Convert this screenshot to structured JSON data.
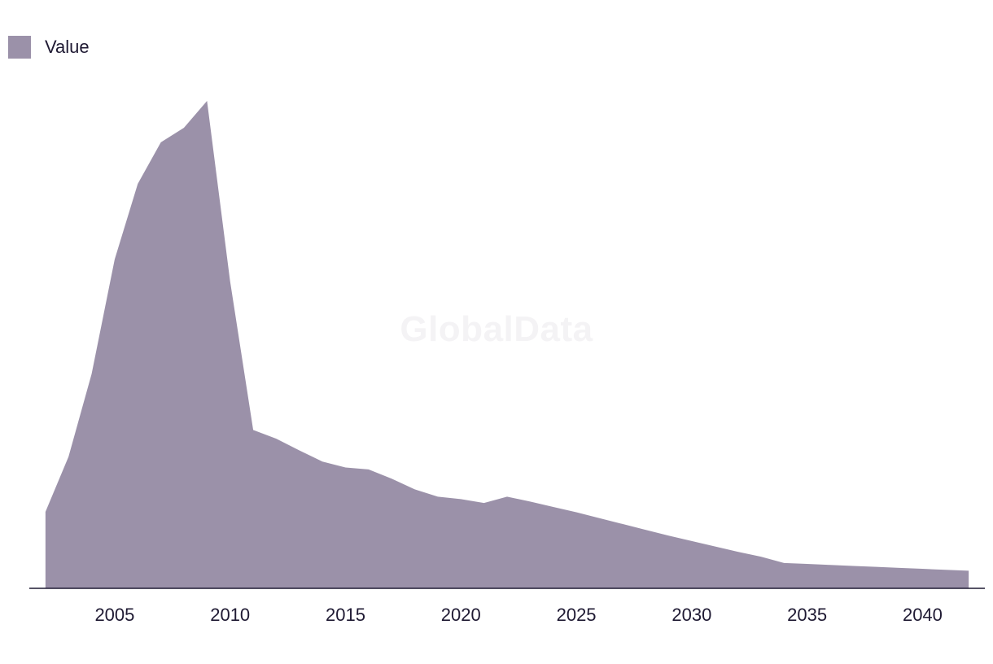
{
  "watermark": "GlobalData",
  "chart_data": {
    "type": "area",
    "legend": {
      "position": "top-left",
      "entries": [
        {
          "name": "Value",
          "color": "#9b91a9"
        }
      ]
    },
    "x": [
      2002,
      2003,
      2004,
      2005,
      2006,
      2007,
      2008,
      2009,
      2010,
      2011,
      2012,
      2013,
      2014,
      2015,
      2016,
      2017,
      2018,
      2019,
      2020,
      2021,
      2022,
      2023,
      2024,
      2025,
      2026,
      2027,
      2028,
      2029,
      2030,
      2031,
      2032,
      2033,
      2034,
      2035,
      2036,
      2037,
      2038,
      2039,
      2040,
      2041,
      2042
    ],
    "series": [
      {
        "name": "Value",
        "color": "#9b91a9",
        "values": [
          15.7,
          27,
          44,
          67.5,
          83,
          91.5,
          94.5,
          100,
          63,
          32.5,
          30.7,
          28.3,
          26,
          24.8,
          24.4,
          22.5,
          20.3,
          18.8,
          18.3,
          17.5,
          18.8,
          17.8,
          16.7,
          15.6,
          14.4,
          13.2,
          12,
          10.8,
          9.7,
          8.6,
          7.5,
          6.5,
          5.2,
          5,
          4.8,
          4.6,
          4.4,
          4.2,
          4.0,
          3.8,
          3.6
        ]
      }
    ],
    "xticks": [
      2005,
      2010,
      2015,
      2020,
      2025,
      2030,
      2035,
      2040
    ],
    "xlim": [
      2001.3,
      2042.7
    ],
    "ylim": [
      0,
      100
    ],
    "xlabel": "",
    "ylabel": "",
    "grid": false
  }
}
